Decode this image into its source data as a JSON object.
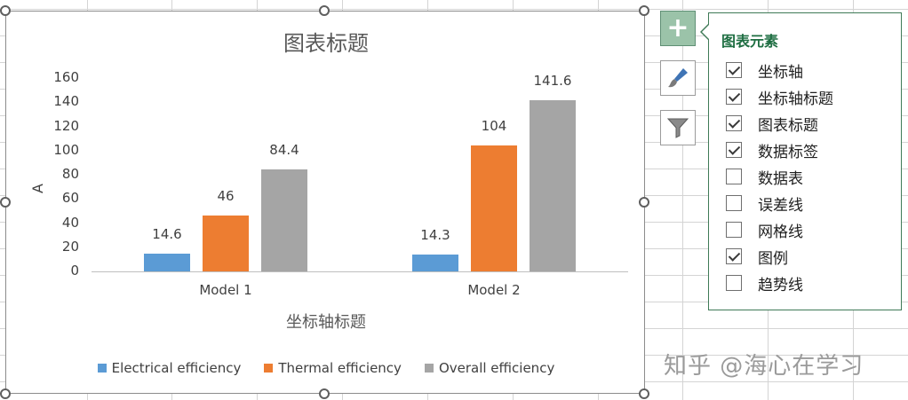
{
  "colors": {
    "electrical": "#5b9bd5",
    "thermal": "#ed7d31",
    "overall": "#a5a5a5",
    "accent": "#1e6e42"
  },
  "chart_data": {
    "type": "bar",
    "title": "图表标题",
    "xlabel": "坐标轴标题",
    "ylabel": "A",
    "ylim": [
      0,
      160
    ],
    "yticks": [
      "0",
      "20",
      "40",
      "60",
      "80",
      "100",
      "120",
      "140",
      "160"
    ],
    "categories": [
      "Model 1",
      "Model 2"
    ],
    "series": [
      {
        "name": "Electrical efficiency",
        "values": [
          14.6,
          14.3
        ],
        "labels": [
          "14.6",
          "14.3"
        ]
      },
      {
        "name": "Thermal efficiency",
        "values": [
          46,
          104
        ],
        "labels": [
          "46",
          "104"
        ]
      },
      {
        "name": "Overall efficiency",
        "values": [
          84.4,
          141.6
        ],
        "labels": [
          "84.4",
          "141.6"
        ]
      }
    ],
    "grid": false,
    "legend": "bottom"
  },
  "side_buttons": [
    "plus-icon",
    "paintbrush-icon",
    "filter-icon"
  ],
  "panel": {
    "title": "图表元素",
    "items": [
      {
        "label": "坐标轴",
        "checked": true
      },
      {
        "label": "坐标轴标题",
        "checked": true
      },
      {
        "label": "图表标题",
        "checked": true
      },
      {
        "label": "数据标签",
        "checked": true
      },
      {
        "label": "数据表",
        "checked": false
      },
      {
        "label": "误差线",
        "checked": false
      },
      {
        "label": "网格线",
        "checked": false
      },
      {
        "label": "图例",
        "checked": true
      },
      {
        "label": "趋势线",
        "checked": false
      }
    ]
  },
  "watermark": "知乎 @海心在学习"
}
